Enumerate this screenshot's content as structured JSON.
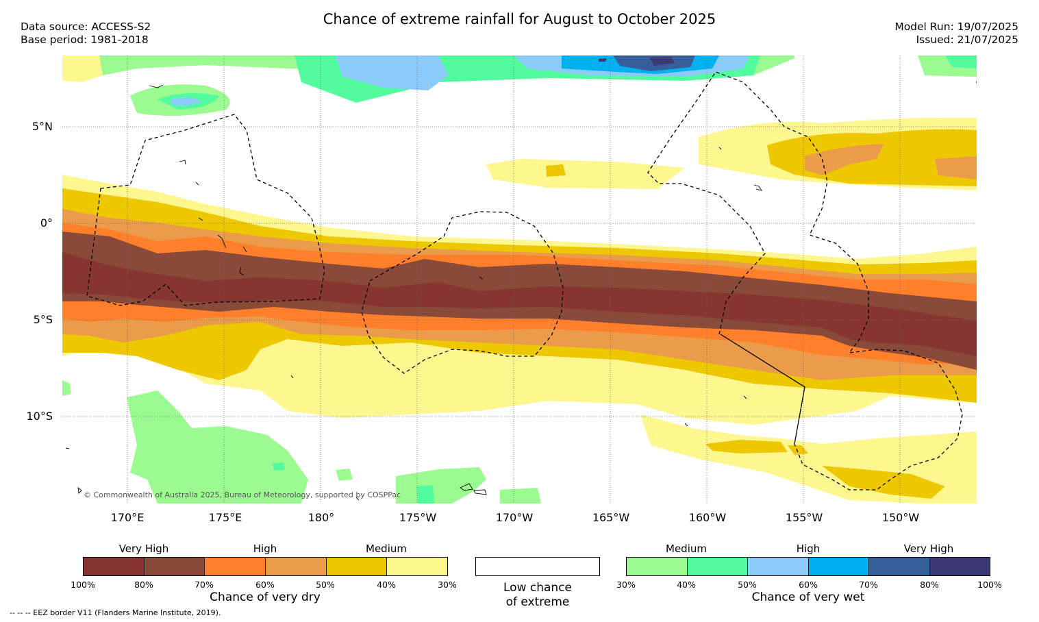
{
  "header": {
    "title": "Chance of extreme rainfall for August to October 2025",
    "data_source": "Data source: ACCESS-S2",
    "base_period": "Base period: 1981-2018",
    "model_run": "Model Run: 19/07/2025",
    "issued": "Issued: 21/07/2025"
  },
  "map": {
    "lat_labels": [
      "5°N",
      "0°",
      "5°S",
      "10°S"
    ],
    "lon_labels": [
      "170°E",
      "175°E",
      "180°",
      "175°W",
      "170°W",
      "165°W",
      "160°W",
      "155°W",
      "150°W"
    ],
    "copyright": "© Commonwealth of Australia 2025, Bureau of Meteorology, supported by COSPPac"
  },
  "legend": {
    "dry": {
      "levels": [
        "Very High",
        "High",
        "Medium"
      ],
      "ticks": [
        "100%",
        "80%",
        "70%",
        "60%",
        "50%",
        "40%",
        "30%"
      ],
      "colors": [
        "#873530",
        "#8a4a3a",
        "#ff7f2a",
        "#ea9c4a",
        "#edc800",
        "#fef68f"
      ],
      "caption": "Chance of very dry"
    },
    "neutral": {
      "caption_line1": "Low chance",
      "caption_line2": "of extreme",
      "color": "#ffffff"
    },
    "wet": {
      "levels": [
        "Medium",
        "High",
        "Very High"
      ],
      "ticks": [
        "30%",
        "40%",
        "50%",
        "60%",
        "70%",
        "80%",
        "100%"
      ],
      "colors": [
        "#9bfa90",
        "#52fc9e",
        "#8ccafa",
        "#00b0ef",
        "#355e9a",
        "#3b3a74"
      ],
      "caption": "Chance of very wet"
    }
  },
  "footer": "--  --  -- EEZ border V11 (Flanders Marine Institute, 2019)."
}
